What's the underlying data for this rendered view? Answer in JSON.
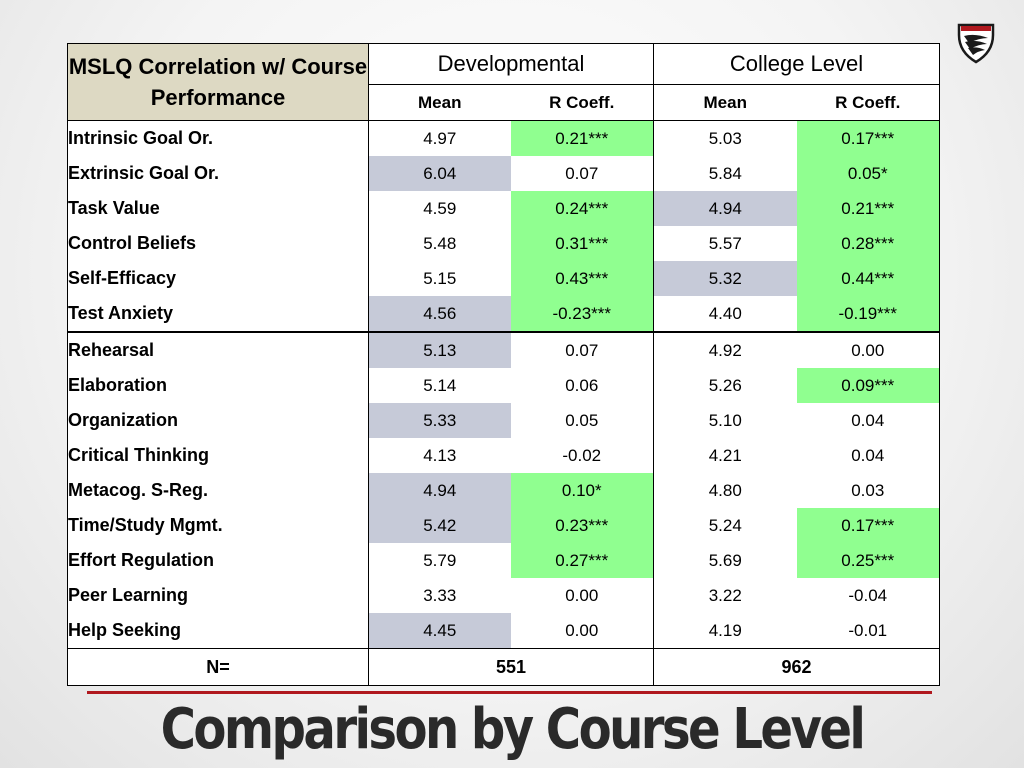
{
  "slide": {
    "title": "Comparison by Course Level",
    "accent_color": "#b0181e",
    "logo_icon": "wing-emblem-icon"
  },
  "table": {
    "header": {
      "title": "MSLQ Correlation w/ Course Performance",
      "groups": [
        "Developmental",
        "College Level"
      ],
      "subheaders": [
        "Mean",
        "R Coeff.",
        "Mean",
        "R Coeff."
      ]
    },
    "highlight_colors": {
      "gray": "#c6cad8",
      "green": "#90ff90"
    },
    "rows": [
      {
        "label": "Intrinsic Goal Or.",
        "values": [
          "4.97",
          "0.21***",
          "5.03",
          "0.17***"
        ],
        "hl": [
          "",
          "green",
          "",
          "green"
        ]
      },
      {
        "label": "Extrinsic Goal Or.",
        "values": [
          "6.04",
          "0.07",
          "5.84",
          "0.05*"
        ],
        "hl": [
          "gray",
          "",
          "",
          "green"
        ]
      },
      {
        "label": "Task Value",
        "values": [
          "4.59",
          "0.24***",
          "4.94",
          "0.21***"
        ],
        "hl": [
          "",
          "green",
          "gray",
          "green"
        ]
      },
      {
        "label": "Control Beliefs",
        "values": [
          "5.48",
          "0.31***",
          "5.57",
          "0.28***"
        ],
        "hl": [
          "",
          "green",
          "",
          "green"
        ]
      },
      {
        "label": "Self-Efficacy",
        "values": [
          "5.15",
          "0.43***",
          "5.32",
          "0.44***"
        ],
        "hl": [
          "",
          "green",
          "gray",
          "green"
        ]
      },
      {
        "label": "Test Anxiety",
        "values": [
          "4.56",
          "-0.23***",
          "4.40",
          "-0.19***"
        ],
        "hl": [
          "gray",
          "green",
          "",
          "green"
        ]
      },
      {
        "label": "Rehearsal",
        "values": [
          "5.13",
          "0.07",
          "4.92",
          "0.00"
        ],
        "hl": [
          "gray",
          "",
          "",
          ""
        ],
        "sep": true
      },
      {
        "label": "Elaboration",
        "values": [
          "5.14",
          "0.06",
          "5.26",
          "0.09***"
        ],
        "hl": [
          "",
          "",
          "",
          "green"
        ]
      },
      {
        "label": "Organization",
        "values": [
          "5.33",
          "0.05",
          "5.10",
          "0.04"
        ],
        "hl": [
          "gray",
          "",
          "",
          ""
        ]
      },
      {
        "label": "Critical Thinking",
        "values": [
          "4.13",
          "-0.02",
          "4.21",
          "0.04"
        ],
        "hl": [
          "",
          "",
          "",
          ""
        ]
      },
      {
        "label": "Metacog. S-Reg.",
        "values": [
          "4.94",
          "0.10*",
          "4.80",
          "0.03"
        ],
        "hl": [
          "gray",
          "green",
          "",
          ""
        ]
      },
      {
        "label": "Time/Study Mgmt.",
        "values": [
          "5.42",
          "0.23***",
          "5.24",
          "0.17***"
        ],
        "hl": [
          "gray",
          "green",
          "",
          "green"
        ]
      },
      {
        "label": "Effort Regulation",
        "values": [
          "5.79",
          "0.27***",
          "5.69",
          "0.25***"
        ],
        "hl": [
          "",
          "green",
          "",
          "green"
        ]
      },
      {
        "label": "Peer Learning",
        "values": [
          "3.33",
          "0.00",
          "3.22",
          "-0.04"
        ],
        "hl": [
          "",
          "",
          "",
          ""
        ]
      },
      {
        "label": "Help Seeking",
        "values": [
          "4.45",
          "0.00",
          "4.19",
          "-0.01"
        ],
        "hl": [
          "gray",
          "",
          "",
          ""
        ]
      }
    ],
    "n_row": {
      "label": "N=",
      "values": [
        "551",
        "962"
      ]
    }
  }
}
